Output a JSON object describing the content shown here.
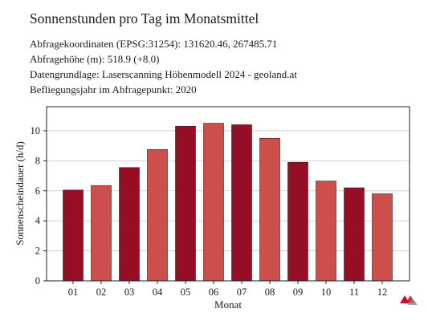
{
  "header": {
    "title": "Sonnenstunden pro Tag im Monatsmittel",
    "lines": [
      "Abfragekoordinaten (EPSG:31254): 131620.46, 267485.71",
      "Abfragehöhe (m): 518.9 (+8.0)",
      "Datengrundlage: Laserscanning Höhenmodell 2024 - geoland.at",
      "Befliegungsjahr im Abfragepunkt: 2020"
    ]
  },
  "logo": {
    "icon": "geoland-logo-icon",
    "colors": [
      "#c8102e",
      "#8a8a8a"
    ]
  },
  "chart_data": {
    "type": "bar",
    "categories": [
      "01",
      "02",
      "03",
      "04",
      "05",
      "06",
      "07",
      "08",
      "09",
      "10",
      "11",
      "12"
    ],
    "values": [
      6.05,
      6.35,
      7.55,
      8.75,
      10.3,
      10.5,
      10.4,
      9.5,
      7.9,
      6.65,
      6.2,
      5.8
    ],
    "colors": [
      "#960e26",
      "#cc4f4b",
      "#960e26",
      "#cc4f4b",
      "#960e26",
      "#cc4f4b",
      "#960e26",
      "#cc4f4b",
      "#960e26",
      "#cc4f4b",
      "#960e26",
      "#cc4f4b"
    ],
    "xlabel": "Monat",
    "ylabel": "Sonnenscheindauer (h/d)",
    "ylim": [
      0,
      11.6
    ],
    "yticks": [
      0,
      2,
      4,
      6,
      8,
      10
    ],
    "grid": "horizontal"
  }
}
